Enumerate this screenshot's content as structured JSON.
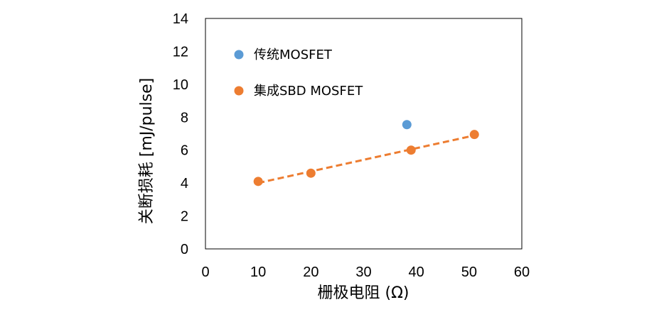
{
  "chart_data": {
    "type": "scatter",
    "xlabel": "栅极电阻 (Ω)",
    "ylabel": "关断损耗 [mJ/pulse]",
    "xlim": [
      0,
      60
    ],
    "ylim": [
      0,
      14
    ],
    "xticks": [
      0,
      10,
      20,
      30,
      40,
      50,
      60
    ],
    "yticks": [
      0,
      2,
      4,
      6,
      8,
      10,
      12,
      14
    ],
    "grid": false,
    "legend_position": "top-left",
    "series": [
      {
        "name": "传统MOSFET",
        "color": "#5b9bd5",
        "x": [
          38.2
        ],
        "y": [
          7.55
        ]
      },
      {
        "name": "集成SBD MOSFET",
        "color": "#ed7d31",
        "x": [
          10,
          20,
          39,
          51
        ],
        "y": [
          4.1,
          4.6,
          6.0,
          6.95
        ],
        "trendline": "linear-dashed"
      }
    ]
  }
}
